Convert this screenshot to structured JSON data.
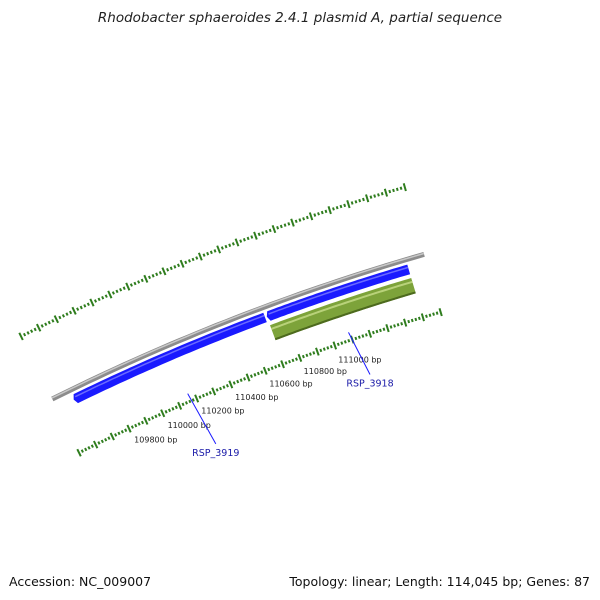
{
  "title": "Rhodobacter sphaeroides 2.4.1 plasmid A, partial sequence",
  "footer": {
    "accession": "Accession: NC_009007",
    "summary": "Topology: linear; Length: 114,045 bp; Genes: 87"
  },
  "ruler": {
    "ticks": [
      {
        "pos": 109800,
        "label": "109800 bp"
      },
      {
        "pos": 110000,
        "label": "110000 bp"
      },
      {
        "pos": 110200,
        "label": "110200 bp"
      },
      {
        "pos": 110400,
        "label": "110400 bp"
      },
      {
        "pos": 110600,
        "label": "110600 bp"
      },
      {
        "pos": 110800,
        "label": "110800 bp"
      },
      {
        "pos": 111000,
        "label": "111000 bp"
      }
    ]
  },
  "genes": [
    {
      "name": "RSP_3919",
      "strand": "reverse",
      "start": 109500,
      "end": 110600,
      "color": "#1a1aff"
    },
    {
      "name": "RSP_3918",
      "strand": "forward",
      "start": 110610,
      "end": 111400,
      "color": "#1a1aff",
      "cds_color": "#7da33a"
    }
  ],
  "colors": {
    "backbone": "#8c8c8c",
    "tick": "#2f7d1e",
    "label_link": "#1a1aff",
    "label_text": "#1a1aa8"
  }
}
